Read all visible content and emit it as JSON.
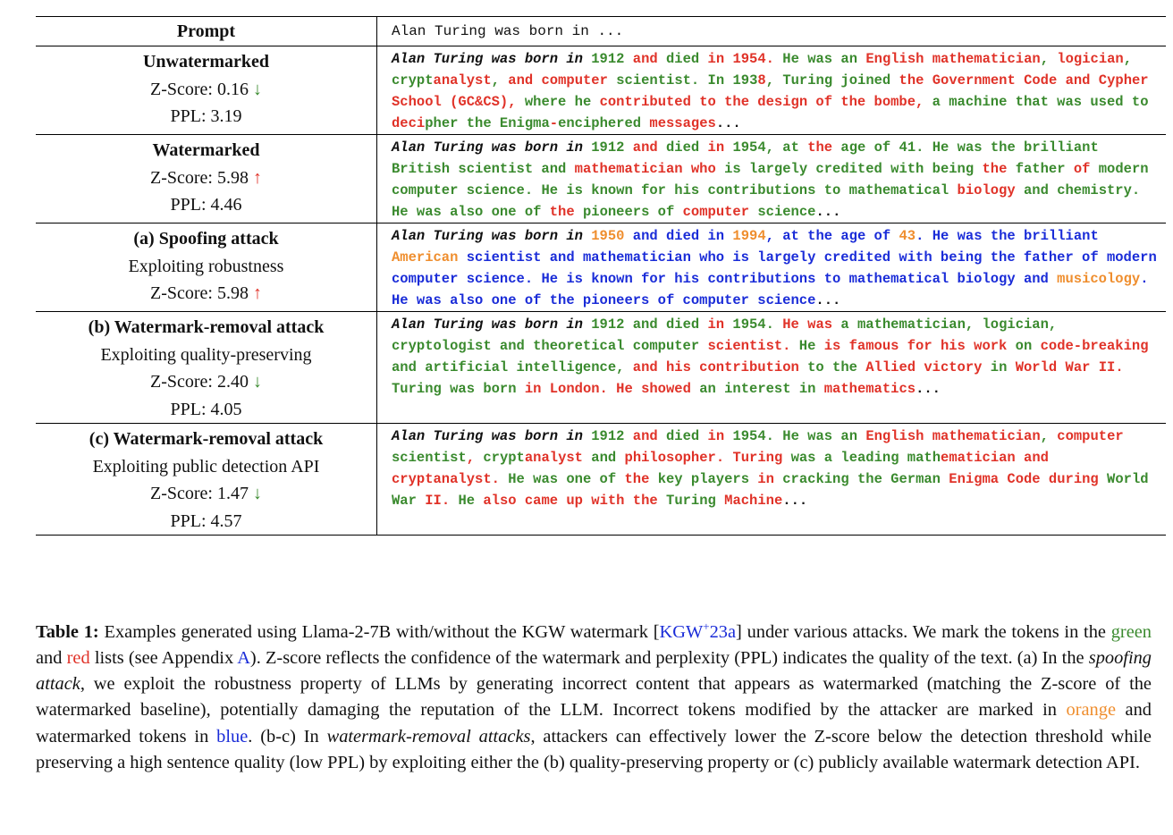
{
  "table": {
    "header": {
      "left": "Prompt",
      "right": "Alan Turing was born in ..."
    },
    "rows": [
      {
        "title": "Unwatermarked",
        "lines": [
          {
            "label": "Z-Score: 0.16",
            "arrow": "↓",
            "arrow_color": "down"
          },
          {
            "label": "PPL: 3.19"
          }
        ],
        "prefix": "Alan Turing was born in",
        "segments": [
          [
            "g",
            "1912"
          ],
          [
            "k",
            " "
          ],
          [
            "r",
            "and"
          ],
          [
            "k",
            " "
          ],
          [
            "g",
            "died"
          ],
          [
            "k",
            " "
          ],
          [
            "r",
            "in"
          ],
          [
            "k",
            " "
          ],
          [
            "r",
            "1954."
          ],
          [
            "k",
            "  "
          ],
          [
            "g",
            "He"
          ],
          [
            "k",
            " "
          ],
          [
            "g",
            "was"
          ],
          [
            "k",
            " "
          ],
          [
            "g",
            "an"
          ],
          [
            "k",
            " "
          ],
          [
            "r",
            "English mathematician"
          ],
          [
            "g",
            ","
          ],
          [
            "k",
            " "
          ],
          [
            "r",
            "logician"
          ],
          [
            "g",
            ","
          ],
          [
            "k",
            " "
          ],
          [
            "g",
            "crypt"
          ],
          [
            "r",
            "analyst"
          ],
          [
            "g",
            ","
          ],
          [
            "k",
            " "
          ],
          [
            "r",
            "and"
          ],
          [
            "k",
            " "
          ],
          [
            "r",
            "computer"
          ],
          [
            "k",
            " "
          ],
          [
            "g",
            "scientist."
          ],
          [
            "k",
            "  "
          ],
          [
            "g",
            "In"
          ],
          [
            "k",
            " "
          ],
          [
            "g",
            "193"
          ],
          [
            "r",
            "8"
          ],
          [
            "g",
            ","
          ],
          [
            "k",
            " "
          ],
          [
            "g",
            "Turing joined"
          ],
          [
            "k",
            " "
          ],
          [
            "r",
            "the Government Code and Cypher School (GC&CS),"
          ],
          [
            "k",
            " "
          ],
          [
            "g",
            "where he"
          ],
          [
            "k",
            " "
          ],
          [
            "r",
            "contributed to the design of the bombe,"
          ],
          [
            "k",
            " "
          ],
          [
            "g",
            "a machine that was used to"
          ],
          [
            "k",
            " "
          ],
          [
            "r",
            "deci"
          ],
          [
            "g",
            "pher the Enigma"
          ],
          [
            "r",
            "-"
          ],
          [
            "g",
            "enciphered"
          ],
          [
            "k",
            " "
          ],
          [
            "r",
            "messages"
          ],
          [
            "k",
            "..."
          ]
        ]
      },
      {
        "title": "Watermarked",
        "lines": [
          {
            "label": "Z-Score: 5.98",
            "arrow": "↑",
            "arrow_color": "up"
          },
          {
            "label": "PPL: 4.46"
          }
        ],
        "prefix": "Alan Turing was born in",
        "segments": [
          [
            "g",
            "1912"
          ],
          [
            "k",
            " "
          ],
          [
            "r",
            "and"
          ],
          [
            "k",
            " "
          ],
          [
            "g",
            "died"
          ],
          [
            "k",
            " "
          ],
          [
            "r",
            "in"
          ],
          [
            "k",
            " "
          ],
          [
            "g",
            "1954, at"
          ],
          [
            "k",
            " "
          ],
          [
            "r",
            "the"
          ],
          [
            "k",
            " "
          ],
          [
            "g",
            "age of 41."
          ],
          [
            "k",
            "  "
          ],
          [
            "g",
            "He was the brilliant British scientist and"
          ],
          [
            "k",
            " "
          ],
          [
            "r",
            "mathematician who"
          ],
          [
            "k",
            " "
          ],
          [
            "g",
            "is largely credited with being"
          ],
          [
            "k",
            " "
          ],
          [
            "r",
            "the"
          ],
          [
            "k",
            " "
          ],
          [
            "g",
            "father"
          ],
          [
            "k",
            " "
          ],
          [
            "r",
            "of"
          ],
          [
            "k",
            " "
          ],
          [
            "g",
            "modern computer science."
          ],
          [
            "k",
            "  "
          ],
          [
            "g",
            "He is known for his contributions to mathematical"
          ],
          [
            "k",
            " "
          ],
          [
            "r",
            "biology"
          ],
          [
            "k",
            " "
          ],
          [
            "g",
            "and chemistry."
          ],
          [
            "k",
            "  "
          ],
          [
            "g",
            "He was also one of"
          ],
          [
            "k",
            " "
          ],
          [
            "r",
            "the"
          ],
          [
            "k",
            " "
          ],
          [
            "g",
            "pioneers of"
          ],
          [
            "k",
            " "
          ],
          [
            "r",
            "computer"
          ],
          [
            "k",
            " "
          ],
          [
            "g",
            "science"
          ],
          [
            "k",
            "..."
          ]
        ]
      },
      {
        "title": "(a) Spoofing attack",
        "lines": [
          {
            "label": "Exploiting robustness"
          },
          {
            "label": "Z-Score: 5.98",
            "arrow": "↑",
            "arrow_color": "up"
          }
        ],
        "prefix": "Alan Turing was born in",
        "segments": [
          [
            "o",
            "1950"
          ],
          [
            "k",
            " "
          ],
          [
            "b",
            "and died in"
          ],
          [
            "k",
            " "
          ],
          [
            "o",
            "1994"
          ],
          [
            "b",
            ", at the age of"
          ],
          [
            "k",
            " "
          ],
          [
            "o",
            "43"
          ],
          [
            "b",
            "."
          ],
          [
            "k",
            "  "
          ],
          [
            "b",
            "He was the brilliant"
          ],
          [
            "k",
            " "
          ],
          [
            "o",
            "American"
          ],
          [
            "k",
            " "
          ],
          [
            "b",
            "scientist and mathematician who is largely credited with being the father of modern computer science."
          ],
          [
            "k",
            "  "
          ],
          [
            "b",
            "He is known for his contributions to mathematical biology and"
          ],
          [
            "k",
            " "
          ],
          [
            "o",
            "musicology"
          ],
          [
            "b",
            "."
          ],
          [
            "k",
            "  "
          ],
          [
            "b",
            "He was also one of the pioneers of computer science"
          ],
          [
            "k",
            "..."
          ]
        ]
      },
      {
        "title": "(b) Watermark-removal attack",
        "lines": [
          {
            "label": "Exploiting quality-preserving"
          },
          {
            "label": "Z-Score: 2.40",
            "arrow": "↓",
            "arrow_color": "down"
          },
          {
            "label": "PPL: 4.05"
          }
        ],
        "prefix": "Alan Turing was born in",
        "segments": [
          [
            "g",
            "1912 and died"
          ],
          [
            "k",
            " "
          ],
          [
            "r",
            "in"
          ],
          [
            "k",
            " "
          ],
          [
            "g",
            "1954."
          ],
          [
            "k",
            "  "
          ],
          [
            "r",
            "He was"
          ],
          [
            "k",
            " "
          ],
          [
            "g",
            "a mathematician, logician, cryptologist and theoretical computer"
          ],
          [
            "k",
            " "
          ],
          [
            "r",
            "scientist."
          ],
          [
            "k",
            "  "
          ],
          [
            "g",
            "He"
          ],
          [
            "k",
            " "
          ],
          [
            "r",
            "is famous for his work"
          ],
          [
            "k",
            " "
          ],
          [
            "g",
            "on"
          ],
          [
            "k",
            " "
          ],
          [
            "r",
            "code-breaking"
          ],
          [
            "k",
            " "
          ],
          [
            "g",
            "and artificial intelligence,"
          ],
          [
            "k",
            " "
          ],
          [
            "r",
            "and his contribution"
          ],
          [
            "k",
            " "
          ],
          [
            "g",
            "to the"
          ],
          [
            "k",
            " "
          ],
          [
            "r",
            "Allied victory"
          ],
          [
            "k",
            " "
          ],
          [
            "g",
            "in"
          ],
          [
            "k",
            " "
          ],
          [
            "r",
            "World War II."
          ],
          [
            "k",
            " "
          ],
          [
            "g",
            "Turing was born"
          ],
          [
            "k",
            " "
          ],
          [
            "r",
            "in London."
          ],
          [
            "k",
            "  "
          ],
          [
            "r",
            "He showed"
          ],
          [
            "k",
            " "
          ],
          [
            "g",
            "an interest in"
          ],
          [
            "k",
            " "
          ],
          [
            "r",
            "mathematics"
          ],
          [
            "k",
            "..."
          ]
        ]
      },
      {
        "title": "(c) Watermark-removal attack",
        "lines": [
          {
            "label": "Exploiting public detection API"
          },
          {
            "label": "Z-Score: 1.47",
            "arrow": "↓",
            "arrow_color": "down"
          },
          {
            "label": "PPL: 4.57"
          }
        ],
        "prefix": "Alan Turing was born in",
        "segments": [
          [
            "g",
            "1912"
          ],
          [
            "k",
            " "
          ],
          [
            "r",
            "and"
          ],
          [
            "k",
            " "
          ],
          [
            "g",
            "died"
          ],
          [
            "k",
            " "
          ],
          [
            "r",
            "in"
          ],
          [
            "k",
            " "
          ],
          [
            "g",
            "1954."
          ],
          [
            "k",
            "  "
          ],
          [
            "g",
            "He was an"
          ],
          [
            "k",
            " "
          ],
          [
            "r",
            "English mathematician"
          ],
          [
            "g",
            ","
          ],
          [
            "k",
            " "
          ],
          [
            "r",
            "computer"
          ],
          [
            "k",
            " "
          ],
          [
            "g",
            "scientist"
          ],
          [
            "r",
            ","
          ],
          [
            "k",
            " "
          ],
          [
            "g",
            "crypt"
          ],
          [
            "r",
            "analyst"
          ],
          [
            "k",
            " "
          ],
          [
            "g",
            "and"
          ],
          [
            "k",
            " "
          ],
          [
            "r",
            "philosopher."
          ],
          [
            "k",
            "  "
          ],
          [
            "r",
            "Turing"
          ],
          [
            "k",
            " "
          ],
          [
            "g",
            "was a leading math"
          ],
          [
            "r",
            "ematician and cryptanalyst."
          ],
          [
            "k",
            "  "
          ],
          [
            "g",
            "He was one of"
          ],
          [
            "k",
            " "
          ],
          [
            "r",
            "the"
          ],
          [
            "k",
            " "
          ],
          [
            "g",
            "key players"
          ],
          [
            "k",
            " "
          ],
          [
            "r",
            "in"
          ],
          [
            "k",
            " "
          ],
          [
            "g",
            "cracking the German"
          ],
          [
            "k",
            " "
          ],
          [
            "r",
            "Enigma Code during"
          ],
          [
            "k",
            " "
          ],
          [
            "g",
            "World War"
          ],
          [
            "k",
            " "
          ],
          [
            "r",
            "II."
          ],
          [
            "k",
            " "
          ],
          [
            "g",
            "He"
          ],
          [
            "k",
            " "
          ],
          [
            "r",
            "also came up with the"
          ],
          [
            "k",
            " "
          ],
          [
            "g",
            "Turing"
          ],
          [
            "k",
            " "
          ],
          [
            "r",
            "Machine"
          ],
          [
            "k",
            "..."
          ]
        ]
      }
    ]
  },
  "caption": {
    "label": "Table 1:",
    "parts": [
      [
        "t",
        " Examples generated using Llama-2-7B with/without the KGW watermark ["
      ],
      [
        "cite",
        "KGW"
      ],
      [
        "citesup",
        "+"
      ],
      [
        "cite",
        "23a"
      ],
      [
        "t",
        "] under various attacks. We mark the tokens in the "
      ],
      [
        "cg",
        "green"
      ],
      [
        "t",
        " and "
      ],
      [
        "cr",
        "red"
      ],
      [
        "t",
        " lists (see Appendix "
      ],
      [
        "cite",
        "A"
      ],
      [
        "t",
        "). Z-score reflects the confidence of the watermark and perplexity (PPL) indicates the quality of the text. (a) In the "
      ],
      [
        "em",
        "spoofing attack"
      ],
      [
        "t",
        ", we exploit the robustness property of LLMs by generating incorrect content that appears as watermarked (matching the Z-score of the watermarked baseline), potentially damaging the reputation of the LLM. Incorrect tokens modified by the attacker are marked in "
      ],
      [
        "co",
        "orange"
      ],
      [
        "t",
        " and watermarked tokens in "
      ],
      [
        "cb",
        "blue"
      ],
      [
        "t",
        ". (b-c) In "
      ],
      [
        "em",
        "watermark-removal attacks"
      ],
      [
        "t",
        ", attackers can effectively lower the Z-score below the detection threshold while preserving a high sentence quality (low PPL) by exploiting either the (b) quality-preserving property or (c) publicly available watermark detection API."
      ]
    ]
  },
  "colors": {
    "green": "#3a8a2e",
    "red": "#e03228",
    "blue": "#1a2cd8",
    "orange": "#ef8e2e"
  }
}
